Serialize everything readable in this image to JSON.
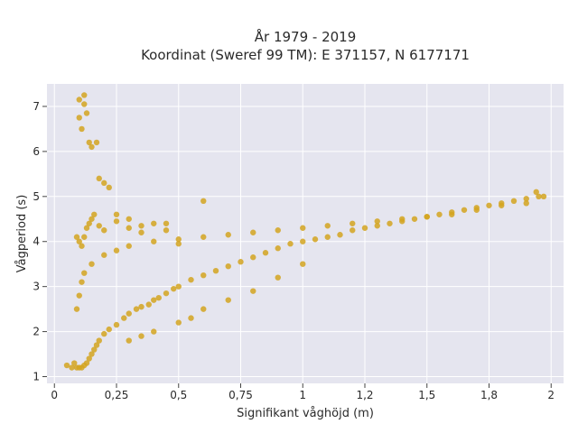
{
  "chart_data": {
    "type": "scatter",
    "title": "År 1979 - 2019",
    "subtitle": "Koordinat (Sweref 99 TM): E 371157, N 6177171",
    "xlabel": "Signifikant våghöjd (m)",
    "ylabel": "Vågperiod (s)",
    "xlim": [
      -0.03,
      2.05
    ],
    "ylim": [
      0.85,
      7.5
    ],
    "x_ticks": [
      0,
      0.25,
      0.5,
      0.75,
      1,
      1.25,
      1.5,
      1.75,
      2
    ],
    "x_tick_labels": [
      "0",
      "0,25",
      "0,5",
      "0,75",
      "1",
      "1,2",
      "1,5",
      "1,8",
      "2"
    ],
    "y_ticks": [
      1,
      2,
      3,
      4,
      5,
      6,
      7
    ],
    "y_tick_labels": [
      "1",
      "2",
      "3",
      "4",
      "5",
      "6",
      "7"
    ],
    "grid": true,
    "colors": {
      "marker": "#D4A520",
      "plot_background": "#E5E5EF",
      "grid": "#ffffff"
    },
    "series": [
      {
        "x": [
          0.05,
          0.07,
          0.08,
          0.09,
          0.1,
          0.11,
          0.12,
          0.13,
          0.14,
          0.15,
          0.16,
          0.17,
          0.18,
          0.2,
          0.22,
          0.25,
          0.28,
          0.3,
          0.33,
          0.35,
          0.38,
          0.4,
          0.42,
          0.45,
          0.48,
          0.5,
          0.55,
          0.6,
          0.65,
          0.7,
          0.75,
          0.8,
          0.85,
          0.9,
          0.95,
          1.0,
          1.05,
          1.1,
          1.15,
          1.2,
          1.25,
          1.3,
          1.35,
          1.4,
          1.45,
          1.5,
          1.55,
          1.6,
          1.65,
          1.7,
          1.75,
          1.8,
          1.85,
          1.9,
          1.95,
          0.1,
          0.1,
          0.11,
          0.12,
          0.12,
          0.13,
          0.14,
          0.15,
          0.17,
          0.18,
          0.2,
          0.22,
          0.25,
          0.3,
          0.35,
          0.45,
          0.6,
          0.09,
          0.1,
          0.11,
          0.12,
          0.13,
          0.14,
          0.15,
          0.16,
          0.18,
          0.2,
          0.25,
          0.3,
          0.35,
          0.4,
          0.45,
          0.5,
          0.09,
          0.1,
          0.11,
          0.12,
          0.15,
          0.2,
          0.25,
          0.3,
          0.4,
          0.5,
          0.6,
          0.7,
          0.8,
          0.9,
          1.0,
          1.1,
          1.2,
          1.3,
          1.4,
          1.5,
          1.6,
          1.7,
          1.8,
          1.9,
          1.94,
          1.97,
          0.3,
          0.35,
          0.4,
          0.5,
          0.55,
          0.6,
          0.7,
          0.8,
          0.9,
          1.0
        ],
        "y": [
          1.25,
          1.2,
          1.3,
          1.2,
          1.2,
          1.2,
          1.25,
          1.3,
          1.4,
          1.5,
          1.6,
          1.7,
          1.8,
          1.95,
          2.05,
          2.15,
          2.3,
          2.4,
          2.5,
          2.55,
          2.6,
          2.7,
          2.75,
          2.85,
          2.95,
          3.0,
          3.15,
          3.25,
          3.35,
          3.45,
          3.55,
          3.65,
          3.75,
          3.85,
          3.95,
          4.0,
          4.05,
          4.1,
          4.15,
          4.25,
          4.3,
          4.35,
          4.4,
          4.45,
          4.5,
          4.55,
          4.6,
          4.65,
          4.7,
          4.75,
          4.8,
          4.85,
          4.9,
          4.95,
          5.0,
          6.75,
          7.15,
          6.5,
          7.05,
          7.25,
          6.85,
          6.2,
          6.1,
          6.2,
          5.4,
          5.3,
          5.2,
          4.6,
          4.5,
          4.35,
          4.4,
          4.9,
          4.1,
          4.0,
          3.9,
          4.1,
          4.3,
          4.4,
          4.5,
          4.6,
          4.35,
          4.25,
          4.45,
          4.3,
          4.2,
          4.4,
          4.25,
          3.95,
          2.5,
          2.8,
          3.1,
          3.3,
          3.5,
          3.7,
          3.8,
          3.9,
          4.0,
          4.05,
          4.1,
          4.15,
          4.2,
          4.25,
          4.3,
          4.35,
          4.4,
          4.45,
          4.5,
          4.55,
          4.6,
          4.7,
          4.8,
          4.85,
          5.1,
          5.0,
          1.8,
          1.9,
          2.0,
          2.2,
          2.3,
          2.5,
          2.7,
          2.9,
          3.2,
          3.5
        ]
      }
    ]
  }
}
